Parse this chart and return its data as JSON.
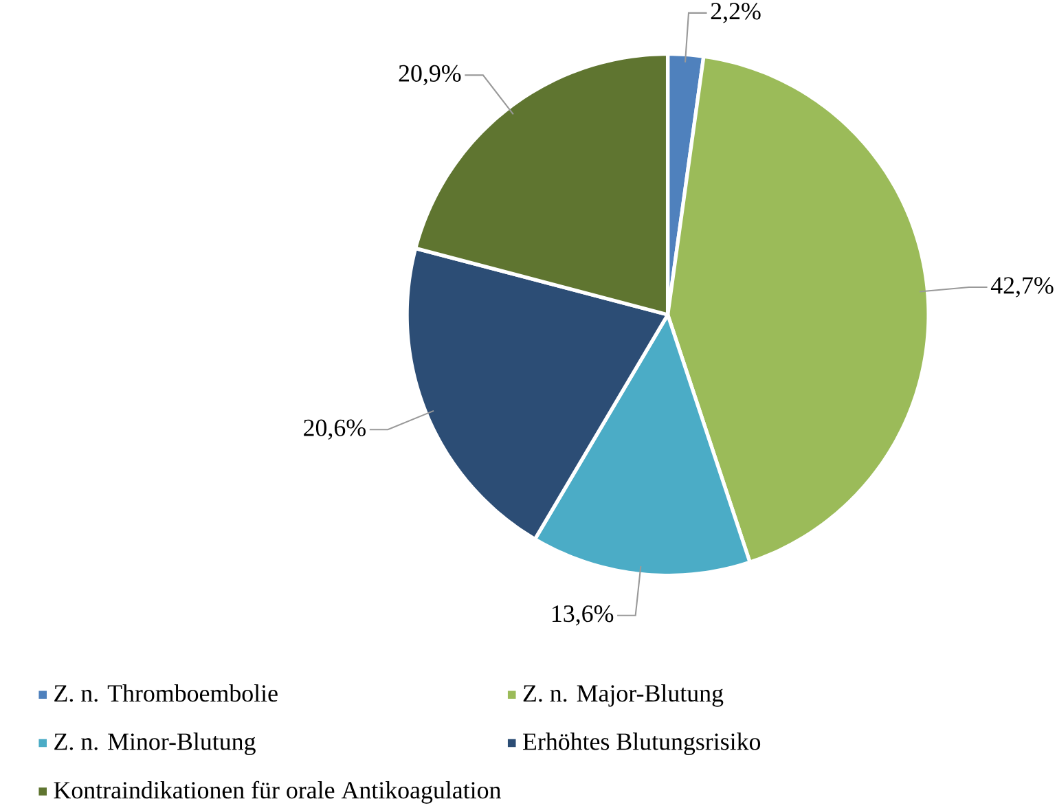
{
  "chart_data": {
    "type": "pie",
    "categories": [
      "Z. n. Thromboembolie",
      "Z. n. Major-Blutung",
      "Z. n. Minor-Blutung",
      "Erhöhtes Blutungsrisiko",
      "Kontraindikationen für orale Antikoagulation"
    ],
    "values": [
      2.2,
      42.7,
      13.6,
      20.6,
      20.9
    ],
    "colors": [
      "#4f81bd",
      "#9bbb59",
      "#4bacc6",
      "#2c4d75",
      "#5f7530"
    ],
    "value_labels": [
      "2,2%",
      "42,7%",
      "13,6%",
      "20,6%",
      "20,9%"
    ],
    "legend": "bottom"
  }
}
